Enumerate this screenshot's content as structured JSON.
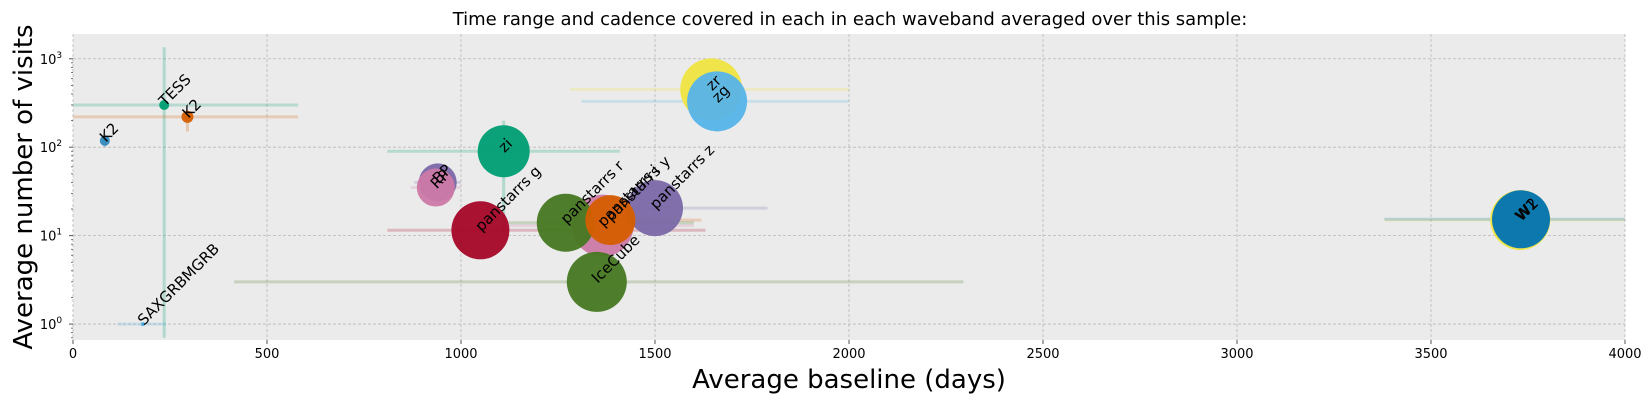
{
  "chart_data": {
    "type": "scatter",
    "title": "Time range and cadence covered in each in each waveband averaged over this sample:",
    "xlabel": "Average baseline (days)",
    "ylabel": "Average number of visits",
    "xlim": [
      0,
      4000
    ],
    "ylim_log10": [
      -0.18,
      3.28
    ],
    "x_ticks": [
      0,
      500,
      1000,
      1500,
      2000,
      2500,
      3000,
      3500,
      4000
    ],
    "x_tick_labels": [
      "0",
      "500",
      "1000",
      "1500",
      "2000",
      "2500",
      "3000",
      "3500",
      "4000"
    ],
    "y_ticks": [
      1,
      10,
      100,
      1000
    ],
    "y_tick_base": "10",
    "y_tick_exponents": [
      "0",
      "1",
      "2",
      "3"
    ],
    "grid": true,
    "colors": {
      "background": "#ebebeb",
      "grid": "#b8b8b8",
      "text": "#000000"
    },
    "points": [
      {
        "label": "K2",
        "x": 82,
        "y": 118,
        "size": 5,
        "color": "#348ABD",
        "xerr": 0,
        "yerr_lo": 100,
        "yerr_hi": 140
      },
      {
        "label": "TESS",
        "x": 235,
        "y": 300,
        "size": 5,
        "color": "#009E73",
        "xerr_lo": 0,
        "xerr_hi": 580,
        "yerr_lo": 0.7,
        "yerr_hi": 1350
      },
      {
        "label": "K2",
        "x": 295,
        "y": 220,
        "size": 6,
        "color": "#D55E00",
        "xerr_lo": 0,
        "xerr_hi": 580,
        "yerr_lo": 150,
        "yerr_hi": 260
      },
      {
        "label": "SAXGRBMGRB",
        "x": 180,
        "y": 1.0,
        "size": 2,
        "color": "#56B4E9",
        "xerr_lo": 115,
        "xerr_hi": 240,
        "yerr_lo": 0.95,
        "yerr_hi": 1.05
      },
      {
        "label": "BP",
        "x": 940,
        "y": 40,
        "size": 19,
        "color": "#7A68A6",
        "xerr_lo": 880,
        "xerr_hi": 1000,
        "yerr_lo": 30,
        "yerr_hi": 50
      },
      {
        "label": "RP",
        "x": 935,
        "y": 35,
        "size": 19,
        "color": "#CC79A7",
        "xerr_lo": 870,
        "xerr_hi": 1000,
        "yerr_lo": 28,
        "yerr_hi": 45
      },
      {
        "label": "zi",
        "x": 1110,
        "y": 90,
        "size": 26,
        "color": "#009E73",
        "xerr_lo": 810,
        "xerr_hi": 1410,
        "yerr_lo": 10,
        "yerr_hi": 200
      },
      {
        "label": "panstarrs g",
        "x": 1050,
        "y": 11.5,
        "size": 29,
        "color": "#A60628",
        "xerr_lo": 810,
        "xerr_hi": 1630,
        "yerr_lo": 11,
        "yerr_hi": 12
      },
      {
        "label": "panstarrs r",
        "x": 1270,
        "y": 14,
        "size": 29,
        "color": "#467821",
        "xerr_lo": 1110,
        "xerr_hi": 1600,
        "yerr_lo": 13,
        "yerr_hi": 15
      },
      {
        "label": "panstarrs y",
        "x": 1385,
        "y": 15,
        "size": 25,
        "color": "#D55E00",
        "xerr_lo": 1290,
        "xerr_hi": 1620,
        "yerr_lo": 14,
        "yerr_hi": 16
      },
      {
        "label": "panstarrs z",
        "x": 1500,
        "y": 20.5,
        "size": 28,
        "color": "#7A68A6",
        "xerr_lo": 1300,
        "xerr_hi": 1790,
        "yerr_lo": 19,
        "yerr_hi": 22
      },
      {
        "label": "panstarrs i",
        "x": 1365,
        "y": 13,
        "size": 31,
        "color": "#CC79A7",
        "xerr_lo": 1100,
        "xerr_hi": 1600,
        "yerr_lo": 12,
        "yerr_hi": 14
      },
      {
        "label": "IceCube",
        "x": 1350,
        "y": 3,
        "size": 30,
        "color": "#467821",
        "xerr_lo": 415,
        "xerr_hi": 2295,
        "yerr_lo": 2.9,
        "yerr_hi": 3.1
      },
      {
        "label": "zg",
        "x": 1660,
        "y": 330,
        "size": 30,
        "color": "#56B4E9",
        "xerr_lo": 1310,
        "xerr_hi": 2000,
        "yerr_lo": 150,
        "yerr_hi": 600
      },
      {
        "label": "zr",
        "x": 1645,
        "y": 450,
        "size": 31,
        "color": "#F0E442",
        "xerr_lo": 1280,
        "xerr_hi": 2000,
        "yerr_lo": 200,
        "yerr_hi": 800
      },
      {
        "label": "W1",
        "x": 3730,
        "y": 15,
        "size": 30,
        "color": "#F0E442",
        "xerr_lo": 3380,
        "xerr_hi": 4000,
        "yerr_lo": 11,
        "yerr_hi": 19
      },
      {
        "label": "W2",
        "x": 3732,
        "y": 15.3,
        "size": 29,
        "color": "#0072B2",
        "xerr_lo": 3380,
        "xerr_hi": 4000,
        "yerr_lo": 11,
        "yerr_hi": 19
      }
    ]
  }
}
